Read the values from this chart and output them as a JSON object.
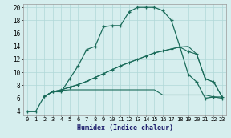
{
  "xlabel": "Humidex (Indice chaleur)",
  "ylabel": "",
  "xlim": [
    -0.5,
    23.5
  ],
  "ylim": [
    3.5,
    20.5
  ],
  "xticks": [
    0,
    1,
    2,
    3,
    4,
    5,
    6,
    7,
    8,
    9,
    10,
    11,
    12,
    13,
    14,
    15,
    16,
    17,
    18,
    19,
    20,
    21,
    22,
    23
  ],
  "yticks": [
    4,
    6,
    8,
    10,
    12,
    14,
    16,
    18,
    20
  ],
  "background_color": "#d6eeee",
  "grid_color": "#b0d8d8",
  "line_color": "#1a6b5a",
  "line1_x": [
    0,
    1,
    2,
    3,
    4,
    5,
    6,
    7,
    8,
    9,
    10,
    11,
    12,
    13,
    14,
    15,
    16,
    17,
    18,
    19,
    20,
    21,
    22,
    23
  ],
  "line1_y": [
    4,
    4,
    6.3,
    7.0,
    7.0,
    9.0,
    11.0,
    13.5,
    14.0,
    17.0,
    17.2,
    17.2,
    19.3,
    20.0,
    20.0,
    20.0,
    19.5,
    18.0,
    14.0,
    9.7,
    8.5,
    6.0,
    6.2,
    6.0
  ],
  "line2_x": [
    2,
    3,
    4,
    5,
    6,
    7,
    8,
    9,
    10,
    11,
    12,
    13,
    14,
    15,
    16,
    17,
    18,
    19,
    20,
    21,
    22,
    23
  ],
  "line2_y": [
    6.3,
    7.0,
    7.2,
    7.3,
    7.3,
    7.3,
    7.3,
    7.3,
    7.3,
    7.3,
    7.3,
    7.3,
    7.3,
    7.3,
    6.5,
    6.5,
    6.5,
    6.5,
    6.5,
    6.5,
    6.2,
    6.2
  ],
  "line3_x": [
    2,
    3,
    4,
    5,
    6,
    7,
    8,
    9,
    10,
    11,
    12,
    13,
    14,
    15,
    16,
    17,
    18,
    19,
    20,
    21,
    22,
    23
  ],
  "line3_y": [
    6.3,
    7.0,
    7.3,
    7.7,
    8.1,
    8.6,
    9.2,
    9.8,
    10.4,
    11.0,
    11.5,
    12.0,
    12.5,
    13.0,
    13.3,
    13.6,
    13.9,
    14.0,
    12.8,
    9.0,
    8.5,
    6.2
  ],
  "line4_x": [
    2,
    3,
    4,
    5,
    6,
    7,
    8,
    9,
    10,
    11,
    12,
    13,
    14,
    15,
    16,
    17,
    18,
    19,
    20,
    21,
    22,
    23
  ],
  "line4_y": [
    6.3,
    7.0,
    7.3,
    7.7,
    8.1,
    8.6,
    9.2,
    9.8,
    10.4,
    11.0,
    11.5,
    12.0,
    12.5,
    13.0,
    13.3,
    13.6,
    13.9,
    13.2,
    12.8,
    9.0,
    8.5,
    6.2
  ]
}
